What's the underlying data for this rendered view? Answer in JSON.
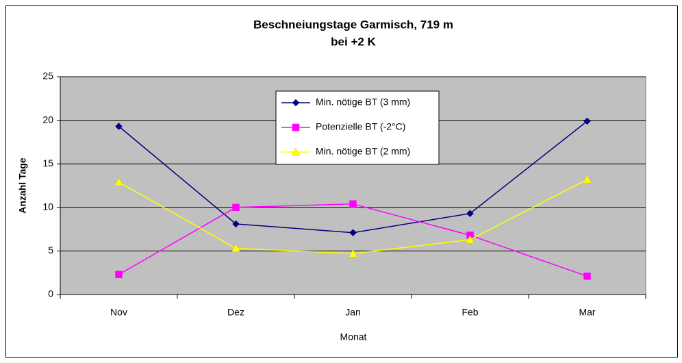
{
  "chart_data": {
    "type": "line",
    "title": [
      "Beschneiungstage Garmisch, 719 m",
      "bei +2 K"
    ],
    "x_label": "Monat",
    "y_label": "Anzahl Tage",
    "categories": [
      "Nov",
      "Dez",
      "Jan",
      "Feb",
      "Mar"
    ],
    "series": [
      {
        "name": "Min. nötige BT (3 mm)",
        "color": "#000080",
        "marker": "diamond",
        "values": [
          19.3,
          8.1,
          7.1,
          9.3,
          19.9
        ]
      },
      {
        "name": "Potenzielle BT (-2°C)",
        "color": "#ff00ff",
        "marker": "square",
        "values": [
          2.3,
          10.0,
          10.4,
          6.8,
          2.1
        ]
      },
      {
        "name": "Min. nötige BT (2 mm)",
        "color": "#ffff00",
        "marker": "triangle",
        "values": [
          12.9,
          5.3,
          4.7,
          6.3,
          13.2
        ]
      }
    ],
    "ylim": [
      0,
      25
    ],
    "yticks": [
      0,
      5,
      10,
      15,
      20,
      25
    ],
    "grid": true,
    "legend": "top-center",
    "plot_background": "#c0c0c0"
  }
}
